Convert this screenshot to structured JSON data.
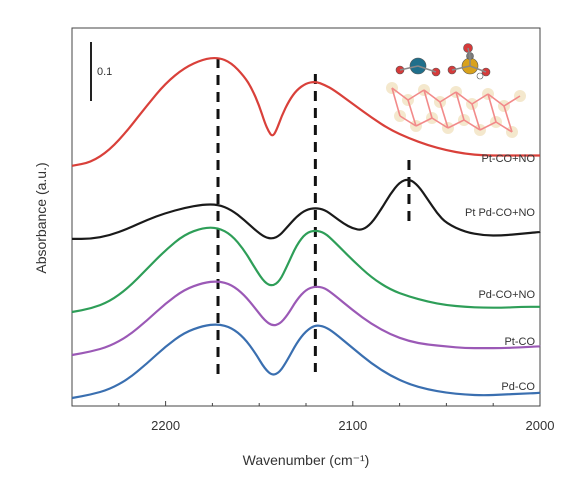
{
  "chart_data": {
    "type": "line",
    "xlabel": "Wavenumber (cm⁻¹)",
    "ylabel": "Absorbance (a.u.)",
    "xlim": [
      2250,
      2000
    ],
    "x_reversed": true,
    "y_ticks_shown": false,
    "xticks": [
      2200,
      2100,
      2000
    ],
    "xtick_labels": [
      "2200",
      "2100",
      "2000"
    ],
    "scale_bar": {
      "label": "0.1",
      "value": 0.1
    },
    "reference_lines": [
      2172,
      2120,
      2070
    ],
    "inset": "structure model (Pt/Pd atoms with adsorbed CO on support lattice)",
    "series": [
      {
        "name": "Pd-CO",
        "color": "#3a6fb0",
        "offset": 0.0,
        "x": [
          2250,
          2240,
          2230,
          2220,
          2210,
          2200,
          2190,
          2180,
          2172,
          2165,
          2158,
          2152,
          2147,
          2143,
          2139,
          2135,
          2130,
          2125,
          2120,
          2115,
          2110,
          2100,
          2090,
          2080,
          2070,
          2060,
          2050,
          2040,
          2030,
          2020,
          2010,
          2000
        ],
        "y": [
          0.0,
          0.004,
          0.01,
          0.022,
          0.04,
          0.06,
          0.076,
          0.084,
          0.086,
          0.082,
          0.07,
          0.052,
          0.034,
          0.026,
          0.03,
          0.044,
          0.064,
          0.078,
          0.085,
          0.083,
          0.076,
          0.058,
          0.04,
          0.026,
          0.016,
          0.01,
          0.006,
          0.004,
          0.003,
          0.004,
          0.005,
          0.006
        ]
      },
      {
        "name": "Pt-CO",
        "color": "#9b59b6",
        "offset": 0.05,
        "x": [
          2250,
          2240,
          2230,
          2220,
          2210,
          2200,
          2190,
          2180,
          2172,
          2165,
          2158,
          2152,
          2147,
          2143,
          2139,
          2135,
          2130,
          2125,
          2120,
          2115,
          2110,
          2100,
          2090,
          2080,
          2070,
          2060,
          2050,
          2040,
          2030,
          2020,
          2010,
          2000
        ],
        "y": [
          0.0,
          0.004,
          0.01,
          0.022,
          0.04,
          0.06,
          0.076,
          0.084,
          0.086,
          0.082,
          0.07,
          0.054,
          0.04,
          0.034,
          0.036,
          0.046,
          0.064,
          0.076,
          0.08,
          0.078,
          0.07,
          0.052,
          0.036,
          0.024,
          0.016,
          0.012,
          0.01,
          0.008,
          0.008,
          0.008,
          0.009,
          0.01
        ]
      },
      {
        "name": "Pd-CO+NO",
        "color": "#2e9e58",
        "offset": 0.1,
        "x": [
          2250,
          2240,
          2230,
          2220,
          2210,
          2200,
          2190,
          2180,
          2172,
          2165,
          2158,
          2152,
          2147,
          2143,
          2139,
          2135,
          2130,
          2125,
          2120,
          2115,
          2110,
          2100,
          2090,
          2080,
          2070,
          2060,
          2050,
          2040,
          2030,
          2020,
          2010,
          2000
        ],
        "y": [
          0.0,
          0.004,
          0.012,
          0.028,
          0.05,
          0.072,
          0.09,
          0.098,
          0.098,
          0.09,
          0.072,
          0.05,
          0.034,
          0.03,
          0.036,
          0.054,
          0.078,
          0.092,
          0.095,
          0.092,
          0.082,
          0.06,
          0.04,
          0.026,
          0.018,
          0.012,
          0.008,
          0.006,
          0.005,
          0.005,
          0.006,
          0.006
        ]
      },
      {
        "name": "Pt Pd-CO+NO",
        "color": "#1a1a1a",
        "offset": 0.185,
        "x": [
          2250,
          2240,
          2230,
          2220,
          2210,
          2200,
          2190,
          2180,
          2172,
          2165,
          2158,
          2152,
          2147,
          2143,
          2139,
          2135,
          2130,
          2125,
          2120,
          2115,
          2110,
          2105,
          2100,
          2095,
          2090,
          2085,
          2080,
          2075,
          2070,
          2065,
          2060,
          2055,
          2050,
          2040,
          2030,
          2020,
          2010,
          2000
        ],
        "y": [
          0.0,
          0.0,
          0.004,
          0.012,
          0.022,
          0.03,
          0.036,
          0.04,
          0.04,
          0.034,
          0.022,
          0.01,
          0.002,
          0.0,
          0.004,
          0.014,
          0.026,
          0.034,
          0.036,
          0.034,
          0.026,
          0.018,
          0.012,
          0.01,
          0.018,
          0.034,
          0.052,
          0.066,
          0.07,
          0.062,
          0.046,
          0.03,
          0.018,
          0.008,
          0.004,
          0.004,
          0.006,
          0.008
        ]
      },
      {
        "name": "Pt-CO+NO",
        "color": "#d9403a",
        "offset": 0.27,
        "x": [
          2250,
          2240,
          2230,
          2220,
          2210,
          2200,
          2190,
          2180,
          2172,
          2165,
          2158,
          2154,
          2150,
          2147,
          2145,
          2143,
          2141,
          2138,
          2134,
          2130,
          2125,
          2120,
          2115,
          2110,
          2100,
          2090,
          2080,
          2070,
          2060,
          2050,
          2040,
          2030,
          2020,
          2010,
          2000
        ],
        "y": [
          0.0,
          0.004,
          0.018,
          0.042,
          0.07,
          0.096,
          0.114,
          0.124,
          0.126,
          0.12,
          0.104,
          0.09,
          0.07,
          0.05,
          0.04,
          0.034,
          0.04,
          0.058,
          0.076,
          0.088,
          0.096,
          0.098,
          0.094,
          0.088,
          0.072,
          0.056,
          0.042,
          0.032,
          0.024,
          0.018,
          0.014,
          0.012,
          0.012,
          0.012,
          0.012
        ]
      }
    ]
  }
}
